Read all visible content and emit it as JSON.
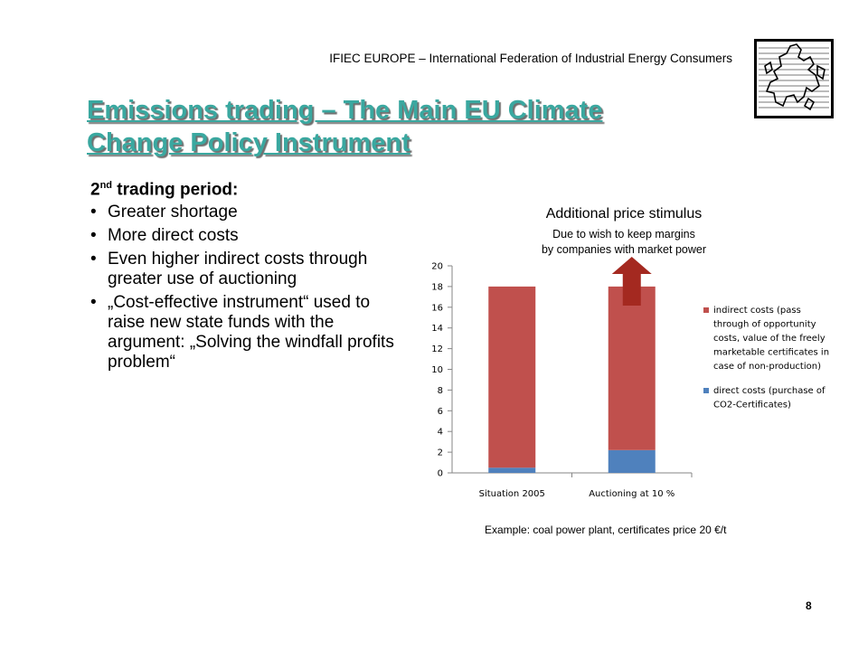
{
  "header": {
    "organization": "IFIEC EUROPE – International Federation of Industrial Energy Consumers"
  },
  "slide": {
    "title_line1": "Emissions trading – The Main EU Climate",
    "title_line2": "Change Policy Instrument",
    "heading_prefix": "2",
    "heading_sup": "nd",
    "heading_rest": " trading period:",
    "bullets": [
      "Greater shortage",
      "More direct costs",
      "Even higher indirect costs through greater use of auctioning",
      "„Cost-effective instrument“ used to raise new state funds with the argument: „Solving the windfall profits problem“"
    ],
    "stimulus_title": "Additional price stimulus",
    "stimulus_sub_line1": "Due to wish to keep margins",
    "stimulus_sub_line2": "by companies with market power",
    "example_note": "Example: coal power plant, certificates price 20 €/t",
    "slide_number": "8"
  },
  "colors": {
    "title": "#3aa8a0",
    "indirect": "#c0504d",
    "direct": "#4f81bd",
    "arrow": "#a42920"
  },
  "chart_data": {
    "type": "bar",
    "stacked": true,
    "categories": [
      "Situation 2005",
      "Auctioning at 10 %"
    ],
    "series": [
      {
        "name": "direct costs (purchase of CO2-Certificates)",
        "values": [
          0.5,
          2.2
        ]
      },
      {
        "name": "indirect costs (pass through of opportunity costs, value of the freely marketable certificates in case of non-production)",
        "values": [
          17.5,
          15.8
        ]
      }
    ],
    "legend_lines": [
      [
        "indirect costs (pass",
        "through of opportunity",
        "costs, value of the freely",
        "marketable certificates in",
        "case of non-production)"
      ],
      [
        "direct costs (purchase of",
        "CO2-Certificates)"
      ]
    ],
    "yticks": [
      0,
      2,
      4,
      6,
      8,
      10,
      12,
      14,
      16,
      18,
      20
    ],
    "ylim": [
      0,
      20
    ],
    "grid": false,
    "legend_position": "right"
  }
}
